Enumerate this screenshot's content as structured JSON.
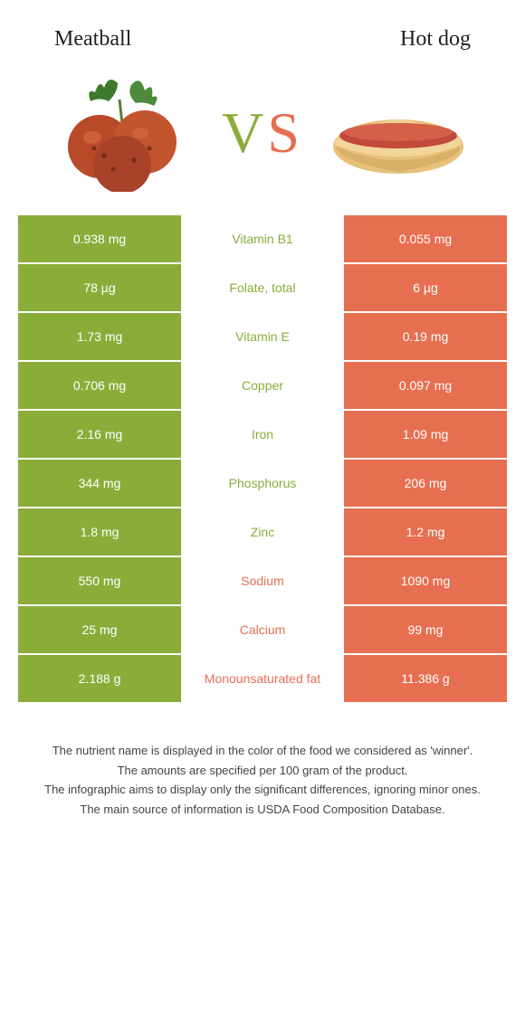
{
  "colors": {
    "left": "#8aad3a",
    "right": "#e76f51",
    "background": "#ffffff",
    "text": "#333333",
    "cell_text": "#ffffff"
  },
  "header": {
    "left_title": "Meatball",
    "right_title": "Hot dog"
  },
  "vs": {
    "v": "V",
    "s": "S"
  },
  "rows": [
    {
      "nutrient": "Vitamin B1",
      "left": "0.938 mg",
      "right": "0.055 mg",
      "winner": "left"
    },
    {
      "nutrient": "Folate, total",
      "left": "78 µg",
      "right": "6 µg",
      "winner": "left"
    },
    {
      "nutrient": "Vitamin E",
      "left": "1.73 mg",
      "right": "0.19 mg",
      "winner": "left"
    },
    {
      "nutrient": "Copper",
      "left": "0.706 mg",
      "right": "0.097 mg",
      "winner": "left"
    },
    {
      "nutrient": "Iron",
      "left": "2.16 mg",
      "right": "1.09 mg",
      "winner": "left"
    },
    {
      "nutrient": "Phosphorus",
      "left": "344 mg",
      "right": "206 mg",
      "winner": "left"
    },
    {
      "nutrient": "Zinc",
      "left": "1.8 mg",
      "right": "1.2 mg",
      "winner": "left"
    },
    {
      "nutrient": "Sodium",
      "left": "550 mg",
      "right": "1090 mg",
      "winner": "right"
    },
    {
      "nutrient": "Calcium",
      "left": "25 mg",
      "right": "99 mg",
      "winner": "right"
    },
    {
      "nutrient": "Monounsaturated fat",
      "left": "2.188 g",
      "right": "11.386 g",
      "winner": "right"
    }
  ],
  "footer": {
    "line1": "The nutrient name is displayed in the color of the food we considered as 'winner'.",
    "line2": "The amounts are specified per 100 gram of the product.",
    "line3": "The infographic aims to display only the significant differences, ignoring minor ones.",
    "line4": "The main source of information is USDA Food Composition Database."
  }
}
